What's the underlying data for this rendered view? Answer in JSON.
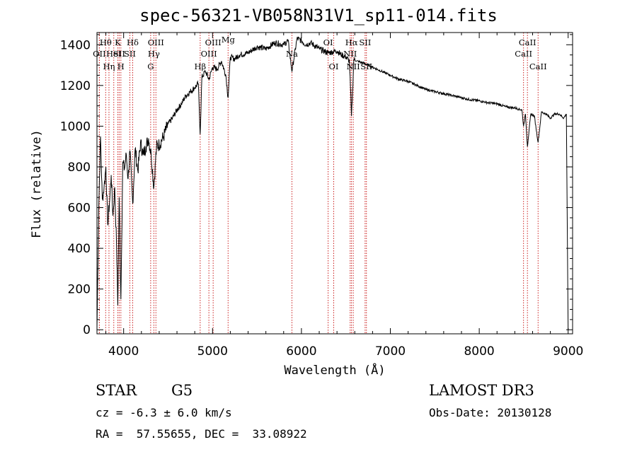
{
  "chart_data": {
    "type": "line",
    "title": "spec-56321-VB058N31V1_sp11-014.fits",
    "xlabel": "Wavelength (Å)",
    "ylabel": "Flux (relative)",
    "xlim": [
      3700,
      9050
    ],
    "ylim": [
      -20,
      1460
    ],
    "xticks": [
      4000,
      5000,
      6000,
      7000,
      8000,
      9000
    ],
    "yticks": [
      0,
      200,
      400,
      600,
      800,
      1000,
      1200,
      1400
    ],
    "grid": false,
    "series": [
      {
        "name": "flux",
        "x": [
          3700,
          3720,
          3740,
          3760,
          3780,
          3800,
          3820,
          3840,
          3860,
          3880,
          3900,
          3920,
          3934,
          3950,
          3969,
          3990,
          4010,
          4030,
          4050,
          4070,
          4102,
          4130,
          4160,
          4190,
          4220,
          4250,
          4280,
          4310,
          4340,
          4370,
          4400,
          4450,
          4500,
          4550,
          4600,
          4650,
          4700,
          4750,
          4800,
          4840,
          4861,
          4880,
          4920,
          4960,
          5000,
          5050,
          5100,
          5150,
          5175,
          5200,
          5250,
          5300,
          5400,
          5500,
          5600,
          5700,
          5800,
          5850,
          5893,
          5950,
          6000,
          6050,
          6100,
          6200,
          6300,
          6400,
          6450,
          6500,
          6540,
          6563,
          6590,
          6620,
          6700,
          6800,
          6900,
          7000,
          7100,
          7200,
          7300,
          7400,
          7500,
          7600,
          7700,
          7800,
          7900,
          8000,
          8100,
          8200,
          8300,
          8400,
          8480,
          8498,
          8520,
          8542,
          8580,
          8620,
          8662,
          8700,
          8750,
          8800,
          8850,
          8900,
          8950,
          8980,
          9000
        ],
        "values": [
          0,
          600,
          950,
          640,
          700,
          800,
          520,
          620,
          760,
          560,
          700,
          420,
          120,
          650,
          150,
          820,
          790,
          860,
          740,
          880,
          620,
          890,
          780,
          920,
          860,
          900,
          940,
          860,
          700,
          900,
          910,
          950,
          1010,
          1040,
          1080,
          1110,
          1150,
          1170,
          1190,
          1210,
          960,
          1240,
          1270,
          1230,
          1290,
          1280,
          1320,
          1250,
          1140,
          1340,
          1330,
          1350,
          1360,
          1390,
          1380,
          1410,
          1400,
          1420,
          1270,
          1430,
          1420,
          1400,
          1410,
          1380,
          1360,
          1370,
          1350,
          1340,
          1320,
          1050,
          1330,
          1320,
          1310,
          1290,
          1270,
          1250,
          1230,
          1220,
          1200,
          1180,
          1170,
          1160,
          1150,
          1140,
          1130,
          1125,
          1115,
          1110,
          1095,
          1090,
          1080,
          1000,
          1060,
          900,
          1060,
          1050,
          920,
          1070,
          1060,
          1040,
          1060,
          1060,
          1040,
          1060,
          0
        ]
      }
    ],
    "lines": [
      {
        "name": "OII",
        "x": 3727,
        "row": 2
      },
      {
        "name": "Hθ",
        "x": 3798,
        "row": 1
      },
      {
        "name": "OII",
        "x": 3727,
        "row": 1,
        "hidden": true
      },
      {
        "name": "Hη",
        "x": 3835,
        "row": 3
      },
      {
        "name": "HeI",
        "x": 3889,
        "row": 2
      },
      {
        "name": "K",
        "x": 3934,
        "row": 1
      },
      {
        "name": "SII",
        "x": 3950,
        "row": 2
      },
      {
        "name": "H",
        "x": 3969,
        "row": 3
      },
      {
        "name": "Hδ",
        "x": 4102,
        "row": 1
      },
      {
        "name": "SII",
        "x": 4070,
        "row": 2
      },
      {
        "name": "G",
        "x": 4304,
        "row": 3
      },
      {
        "name": "OIII",
        "x": 4363,
        "row": 1
      },
      {
        "name": "Hγ",
        "x": 4340,
        "row": 2
      },
      {
        "name": "Hβ",
        "x": 4861,
        "row": 3
      },
      {
        "name": "OIII",
        "x": 5007,
        "row": 1
      },
      {
        "name": "OIII",
        "x": 4959,
        "row": 2
      },
      {
        "name": "Mg",
        "x": 5175,
        "row": 0
      },
      {
        "name": "Na",
        "x": 5893,
        "row": 2
      },
      {
        "name": "OI",
        "x": 6300,
        "row": 1
      },
      {
        "name": "OI",
        "x": 6363,
        "row": 3
      },
      {
        "name": "Hα",
        "x": 6563,
        "row": 1
      },
      {
        "name": "NII",
        "x": 6548,
        "row": 2
      },
      {
        "name": "NII",
        "x": 6583,
        "row": 3
      },
      {
        "name": "SII",
        "x": 6716,
        "row": 1
      },
      {
        "name": "SII",
        "x": 6731,
        "row": 3
      },
      {
        "name": "CaII",
        "x": 8498,
        "row": 2
      },
      {
        "name": "CaII",
        "x": 8542,
        "row": 1
      },
      {
        "name": "CaII",
        "x": 8662,
        "row": 3
      }
    ]
  },
  "info": {
    "class": "STAR",
    "subclass": "G5",
    "cz": "cz = -6.3 ± 6.0 km/s",
    "coords": "RA =  57.55655, DEC =  33.08922",
    "survey": "LAMOST DR3",
    "obs_date": "Obs-Date: 20130128"
  }
}
